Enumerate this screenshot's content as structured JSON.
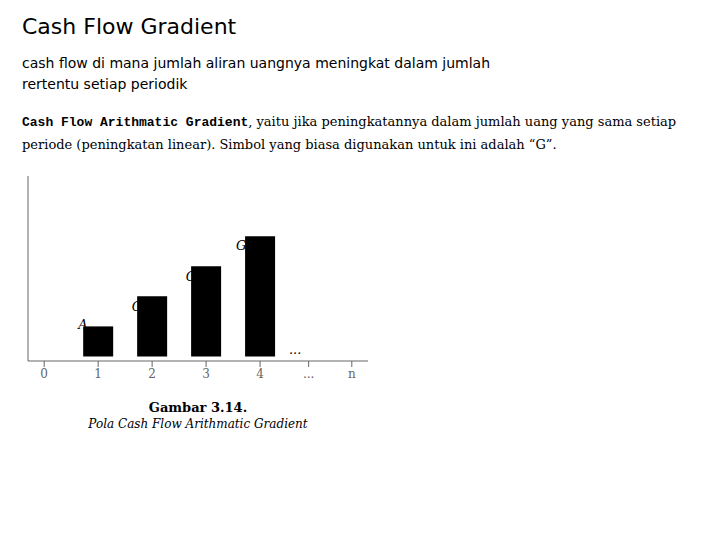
{
  "chart_data": {
    "type": "bar",
    "title": "Cash Flow Gradient",
    "subtitle": "cash flow di mana jumlah aliran uangnya meningkat dalam jumlah\nrertentu setiap periodik",
    "body_bold": "Cash Flow Arithmatic Gradient",
    "body_rest": ", yaitu jika peningkatannya dalam jumlah uang yang sama setiap periode (peningkatan linear). Simbol yang biasa digunakan untuk ini adalah “G”.",
    "caption_bold": "Gambar 3.14.",
    "caption_italic": "Pola Cash Flow Arithmatic Gradient",
    "x": [
      1,
      2,
      3,
      4
    ],
    "values": [
      1,
      2,
      3,
      4
    ],
    "xlim": [
      -0.3,
      6.0
    ],
    "ylim": [
      -0.15,
      6.0
    ],
    "xticks": [
      0,
      1,
      2,
      3,
      4,
      {
        "value": 4.9,
        "label": "..."
      },
      {
        "value": 5.7,
        "label": "n"
      }
    ],
    "tick_labels": "x",
    "grid": false,
    "annotations": [
      {
        "text": "A",
        "x": 0.72,
        "y": 1.08
      },
      {
        "text": "G",
        "x": 1.72,
        "y": 1.65
      },
      {
        "text": "G",
        "x": 2.72,
        "y": 2.65
      },
      {
        "text": "G",
        "x": 3.65,
        "y": 3.7
      },
      {
        "text": "...",
        "x": 4.65,
        "y": 0.25
      }
    ]
  }
}
